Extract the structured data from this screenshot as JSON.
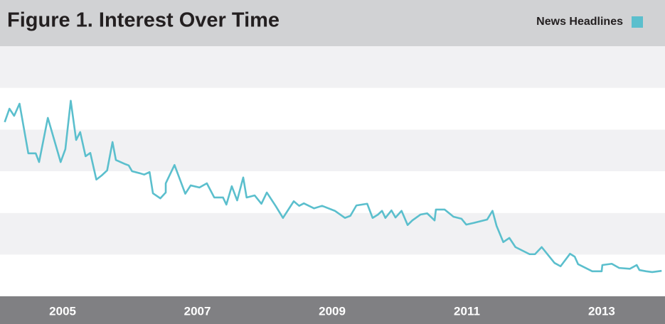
{
  "chart_data": {
    "type": "line",
    "title": "Figure 1. Interest Over Time",
    "x": [
      2004.14,
      2004.21,
      2004.28,
      2004.36,
      2004.49,
      2004.6,
      2004.65,
      2004.78,
      2004.97,
      2005.04,
      2005.12,
      2005.2,
      2005.26,
      2005.34,
      2005.41,
      2005.5,
      2005.58,
      2005.66,
      2005.74,
      2005.79,
      2005.93,
      2005.98,
      2006.03,
      2006.15,
      2006.21,
      2006.29,
      2006.34,
      2006.45,
      2006.53,
      2006.53,
      2006.66,
      2006.82,
      2006.9,
      2007.03,
      2007.14,
      2007.25,
      2007.38,
      2007.43,
      2007.51,
      2007.59,
      2007.68,
      2007.73,
      2007.85,
      2007.95,
      2008.03,
      2008.16,
      2008.27,
      2008.43,
      2008.51,
      2008.58,
      2008.73,
      2008.85,
      2009.04,
      2009.19,
      2009.27,
      2009.36,
      2009.52,
      2009.6,
      2009.68,
      2009.74,
      2009.79,
      2009.88,
      2009.94,
      2010.03,
      2010.12,
      2010.19,
      2010.31,
      2010.41,
      2010.52,
      2010.54,
      2010.67,
      2010.8,
      2010.92,
      2010.99,
      2011.1,
      2011.3,
      2011.38,
      2011.44,
      2011.54,
      2011.63,
      2011.72,
      2011.93,
      2012.01,
      2012.11,
      2012.3,
      2012.39,
      2012.53,
      2012.6,
      2012.65,
      2012.86,
      2013.0,
      2013.01,
      2013.15,
      2013.26,
      2013.42,
      2013.52,
      2013.56,
      2013.66,
      2013.75,
      2013.89
    ],
    "series": [
      {
        "name": "News Headlines",
        "color": "#5bbfcd",
        "values": [
          41.8,
          45.0,
          43.3,
          46.2,
          34.3,
          34.3,
          32.2,
          42.8,
          32.2,
          35.3,
          46.9,
          37.5,
          39.4,
          33.6,
          34.4,
          28.0,
          29.0,
          30.2,
          37.0,
          32.7,
          31.7,
          31.4,
          30.0,
          29.5,
          29.2,
          29.8,
          24.7,
          23.5,
          24.9,
          27.1,
          31.5,
          24.6,
          26.6,
          26.1,
          27.1,
          23.7,
          23.7,
          22.0,
          26.4,
          23.0,
          28.5,
          23.7,
          24.2,
          22.2,
          24.9,
          21.7,
          18.8,
          22.8,
          21.7,
          22.3,
          21.1,
          21.7,
          20.5,
          18.8,
          19.3,
          21.8,
          22.2,
          18.8,
          19.6,
          20.5,
          18.8,
          20.6,
          18.9,
          20.5,
          17.1,
          18.2,
          19.6,
          19.9,
          18.2,
          20.8,
          20.8,
          19.1,
          18.6,
          17.2,
          17.6,
          18.4,
          20.5,
          16.9,
          13.0,
          14.0,
          11.8,
          10.1,
          10.1,
          11.8,
          8.0,
          7.2,
          10.2,
          9.5,
          7.7,
          6.0,
          6.0,
          7.5,
          7.8,
          6.8,
          6.6,
          7.5,
          6.3,
          6.0,
          5.8,
          6.1
        ]
      }
    ],
    "xlim": [
      2004.07,
      2013.94
    ],
    "xticks": [
      2005,
      2007,
      2009,
      2011,
      2013
    ],
    "ylim": [
      0,
      60
    ],
    "yticks": [
      0,
      10,
      20,
      30,
      40,
      50,
      60
    ],
    "grid": true,
    "band_colors": [
      "#ffffff",
      "#f1f1f3"
    ],
    "legend": "top-right"
  }
}
